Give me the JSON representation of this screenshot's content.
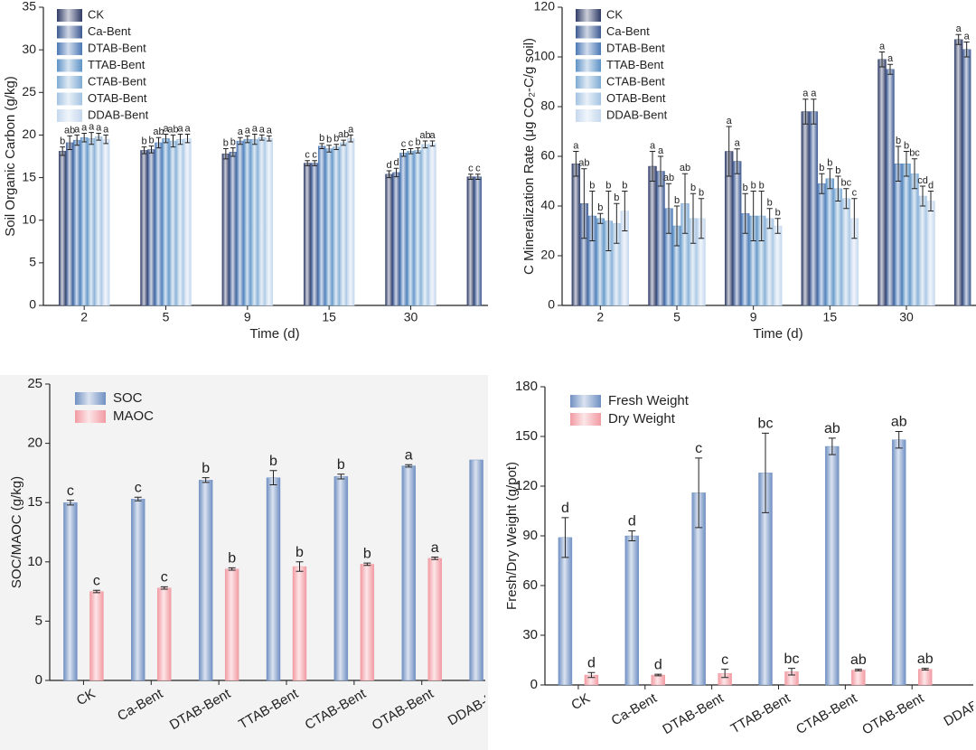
{
  "chart_data": [
    {
      "type": "bar",
      "y_label": "Soil Organic Carbon (g/kg)",
      "x_label": "Time (d)",
      "categories": [
        "2",
        "5",
        "9",
        "15",
        "30",
        null
      ],
      "ylim": [
        0,
        35
      ],
      "yticks": [
        0,
        5,
        10,
        15,
        20,
        25,
        30,
        35
      ],
      "legend": "upper left",
      "series": [
        {
          "name": "CK",
          "color": "#2f3b66",
          "values": [
            18.1,
            18.2,
            17.8,
            16.7,
            15.4,
            15.1
          ],
          "errors": [
            0.5,
            0.4,
            0.6,
            0.3,
            0.4,
            0.3
          ],
          "labels": [
            "b",
            "b",
            "b",
            "c",
            "d",
            "c"
          ]
        },
        {
          "name": "Ca-Bent",
          "color": "#3d5a92",
          "values": [
            19.1,
            18.3,
            18.0,
            16.7,
            15.6,
            15.1
          ],
          "errors": [
            0.8,
            0.4,
            0.5,
            0.3,
            0.5,
            0.3
          ],
          "labels": [
            "ab",
            "b",
            "b",
            "c",
            "d",
            "c"
          ]
        },
        {
          "name": "DTAB-Bent",
          "color": "#4a78b5",
          "values": [
            19.4,
            19.1,
            19.3,
            18.7,
            17.9,
            null
          ],
          "errors": [
            0.6,
            0.6,
            0.4,
            0.3,
            0.4,
            null
          ],
          "labels": [
            "a",
            "ab",
            "a",
            "b",
            "c",
            null
          ]
        },
        {
          "name": "TTAB-Bent",
          "color": "#5d92c6",
          "values": [
            19.7,
            19.6,
            19.5,
            18.4,
            18.1,
            null
          ],
          "errors": [
            0.5,
            0.5,
            0.4,
            0.4,
            0.3,
            null
          ],
          "labels": [
            "a",
            "a",
            "a",
            "b",
            "c",
            null
          ]
        },
        {
          "name": "CTAB-Bent",
          "color": "#7fabd4",
          "values": [
            19.6,
            19.3,
            19.5,
            18.6,
            18.2,
            null
          ],
          "errors": [
            0.7,
            0.7,
            0.6,
            0.3,
            0.3,
            null
          ],
          "labels": [
            "a",
            "ab",
            "a",
            "b",
            "b",
            null
          ]
        },
        {
          "name": "OTAB-Bent",
          "color": "#a3c3e2",
          "values": [
            19.8,
            19.5,
            19.7,
            19.1,
            18.9,
            null
          ],
          "errors": [
            0.4,
            0.6,
            0.3,
            0.3,
            0.4,
            null
          ],
          "labels": [
            "a",
            "a",
            "a",
            "ab",
            "ab",
            null
          ]
        },
        {
          "name": "DDAB-Bent",
          "color": "#c5d8ee",
          "values": [
            19.5,
            19.6,
            19.6,
            19.6,
            19.0,
            null
          ],
          "errors": [
            0.5,
            0.5,
            0.3,
            0.4,
            0.3,
            null
          ],
          "labels": [
            "a",
            "a",
            "a",
            "a",
            "a",
            null
          ]
        }
      ]
    },
    {
      "type": "bar",
      "y_label": "C Mineralization Rate (μg CO₂-C/g soil)",
      "x_label": "Time (d)",
      "categories": [
        "2",
        "5",
        "9",
        "15",
        "30",
        null
      ],
      "ylim": [
        0,
        120
      ],
      "yticks": [
        0,
        20,
        40,
        60,
        80,
        100,
        120
      ],
      "legend": "upper left",
      "series": [
        {
          "name": "CK",
          "color": "#2f3b66",
          "values": [
            57,
            56,
            62,
            78,
            99,
            107
          ],
          "errors": [
            5,
            6,
            10,
            5,
            3,
            2
          ],
          "labels": [
            "a",
            "a",
            "a",
            "a",
            "a",
            "a"
          ]
        },
        {
          "name": "Ca-Bent",
          "color": "#3d5a92",
          "values": [
            41,
            54,
            58,
            78,
            95,
            103
          ],
          "errors": [
            14,
            6,
            5,
            5,
            2,
            3
          ],
          "labels": [
            "ab",
            "a",
            "a",
            "a",
            "a",
            "a"
          ]
        },
        {
          "name": "DTAB-Bent",
          "color": "#4a78b5",
          "values": [
            36,
            39,
            37,
            49,
            57,
            null
          ],
          "errors": [
            10,
            10,
            8,
            4,
            7,
            null
          ],
          "labels": [
            "b",
            "ab",
            "b",
            "b",
            "b",
            null
          ]
        },
        {
          "name": "TTAB-Bent",
          "color": "#5d92c6",
          "values": [
            35,
            32,
            36,
            51,
            57,
            null
          ],
          "errors": [
            2,
            8,
            10,
            4,
            5,
            null
          ],
          "labels": [
            "b",
            "b",
            "b",
            "b",
            "b",
            null
          ]
        },
        {
          "name": "CTAB-Bent",
          "color": "#7fabd4",
          "values": [
            34,
            41,
            36,
            47,
            53,
            null
          ],
          "errors": [
            12,
            12,
            10,
            5,
            6,
            null
          ],
          "labels": [
            "b",
            "ab",
            "b",
            "b",
            "bc",
            null
          ]
        },
        {
          "name": "OTAB-Bent",
          "color": "#a3c3e2",
          "values": [
            33,
            35,
            35,
            43,
            44,
            null
          ],
          "errors": [
            8,
            10,
            4,
            4,
            4,
            null
          ],
          "labels": [
            "b",
            "b",
            "b",
            "bc",
            "cd",
            null
          ]
        },
        {
          "name": "DDAB-Bent",
          "color": "#c5d8ee",
          "values": [
            38,
            35,
            32,
            35,
            42,
            null
          ],
          "errors": [
            8,
            8,
            3,
            8,
            4,
            null
          ],
          "labels": [
            "b",
            "b",
            "b",
            "c",
            "d",
            null
          ]
        }
      ]
    },
    {
      "type": "bar",
      "y_label": "SOC/MAOC (g/kg)",
      "categories": [
        "CK",
        "Ca-Bent",
        "DTAB-Bent",
        "TTAB-Bent",
        "CTAB-Bent",
        "OTAB-Bent",
        "DDAB-Be"
      ],
      "ylim": [
        0,
        25
      ],
      "yticks": [
        0,
        5,
        10,
        15,
        20,
        25
      ],
      "legend": "upper left",
      "series": [
        {
          "name": "SOC",
          "color": "#6f8fc2",
          "values": [
            15.0,
            15.3,
            16.9,
            17.1,
            17.2,
            18.1,
            18.6
          ],
          "errors": [
            0.2,
            0.15,
            0.2,
            0.6,
            0.2,
            0.1,
            null
          ],
          "labels": [
            "c",
            "c",
            "b",
            "b",
            "b",
            "a",
            null
          ]
        },
        {
          "name": "MAOC",
          "color": "#f29aa2",
          "values": [
            7.5,
            7.8,
            9.4,
            9.6,
            9.8,
            10.3,
            null
          ],
          "errors": [
            0.1,
            0.1,
            0.1,
            0.4,
            0.1,
            0.1,
            null
          ],
          "labels": [
            "c",
            "c",
            "b",
            "b",
            "b",
            "a",
            null
          ]
        }
      ]
    },
    {
      "type": "bar",
      "y_label": "Fresh/Dry Weight (g/pot)",
      "categories": [
        "CK",
        "Ca-Bent",
        "DTAB-Bent",
        "TTAB-Bent",
        "CTAB-Bent",
        "OTAB-Bent",
        "DDAB-B"
      ],
      "ylim": [
        0,
        180
      ],
      "yticks": [
        0,
        30,
        60,
        90,
        120,
        150,
        180
      ],
      "legend": "upper left",
      "series": [
        {
          "name": "Fresh Weight",
          "color": "#6f8fc2",
          "values": [
            89,
            90,
            116,
            128,
            144,
            148,
            null
          ],
          "errors": [
            12,
            3,
            21,
            24,
            5,
            5,
            null
          ],
          "labels": [
            "d",
            "d",
            "c",
            "bc",
            "ab",
            "ab",
            null
          ]
        },
        {
          "name": "Dry Weight",
          "color": "#f29aa2",
          "values": [
            6,
            6,
            7,
            8,
            9,
            9.5,
            null
          ],
          "errors": [
            1.5,
            0.5,
            2.5,
            2,
            0.5,
            0.5,
            null
          ],
          "labels": [
            "d",
            "d",
            "c",
            "bc",
            "ab",
            "ab",
            null
          ]
        }
      ]
    }
  ]
}
